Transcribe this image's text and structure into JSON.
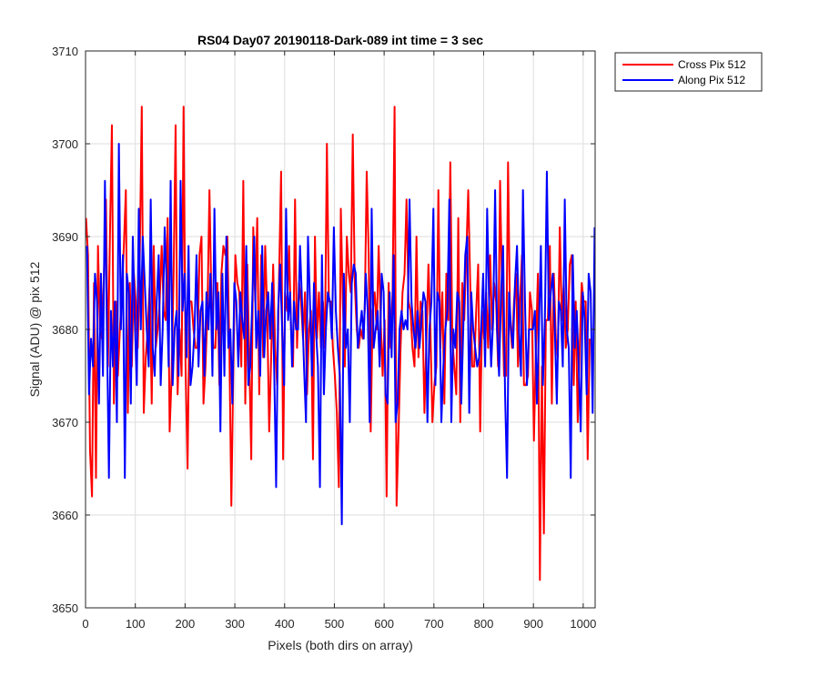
{
  "chart_data": {
    "type": "line",
    "title": "RS04 Day07 20190118-Dark-089 int time = 3 sec",
    "xlabel": "Pixels (both dirs on array)",
    "ylabel": "Signal (ADU) @ pix 512",
    "xlim": [
      0,
      1024
    ],
    "ylim": [
      3650,
      3710
    ],
    "xticks": [
      0,
      100,
      200,
      300,
      400,
      500,
      600,
      700,
      800,
      900,
      1000
    ],
    "yticks": [
      3650,
      3660,
      3670,
      3680,
      3690,
      3700,
      3710
    ],
    "grid": true,
    "legend_position": "outside-top-right",
    "series": [
      {
        "name": "Cross Pix 512",
        "color": "#ff0000",
        "x_start": 1,
        "x_step": 4,
        "values": [
          3692,
          3688,
          3667,
          3662,
          3685,
          3664,
          3689,
          3680,
          3679,
          3686,
          3694,
          3676,
          3690,
          3702,
          3672,
          3683,
          3675,
          3680,
          3684,
          3689,
          3695,
          3671,
          3685,
          3676,
          3686,
          3683,
          3678,
          3688,
          3704,
          3671,
          3677,
          3680,
          3685,
          3672,
          3689,
          3678,
          3680,
          3683,
          3689,
          3682,
          3681,
          3692,
          3669,
          3675,
          3686,
          3702,
          3673,
          3680,
          3675,
          3704,
          3676,
          3665,
          3683,
          3683,
          3680,
          3678,
          3678,
          3688,
          3690,
          3672,
          3676,
          3682,
          3695,
          3683,
          3678,
          3678,
          3685,
          3674,
          3686,
          3689,
          3688,
          3690,
          3678,
          3661,
          3676,
          3688,
          3685,
          3684,
          3676,
          3696,
          3672,
          3687,
          3677,
          3666,
          3691,
          3683,
          3692,
          3673,
          3688,
          3677,
          3689,
          3682,
          3669,
          3677,
          3687,
          3678,
          3674,
          3686,
          3697,
          3666,
          3684,
          3682,
          3689,
          3680,
          3676,
          3694,
          3678,
          3685,
          3683,
          3679,
          3684,
          3673,
          3680,
          3682,
          3666,
          3690,
          3679,
          3684,
          3678,
          3683,
          3678,
          3700,
          3683,
          3683,
          3678,
          3675,
          3671,
          3663,
          3693,
          3683,
          3676,
          3690,
          3686,
          3684,
          3701,
          3685,
          3680,
          3678,
          3680,
          3679,
          3682,
          3697,
          3688,
          3669,
          3682,
          3684,
          3680,
          3689,
          3681,
          3675,
          3681,
          3662,
          3685,
          3678,
          3684,
          3704,
          3661,
          3669,
          3678,
          3684,
          3686,
          3694,
          3683,
          3682,
          3678,
          3676,
          3690,
          3677,
          3683,
          3682,
          3671,
          3679,
          3687,
          3680,
          3670,
          3674,
          3676,
          3695,
          3678,
          3684,
          3672,
          3686,
          3681,
          3698,
          3679,
          3676,
          3673,
          3692,
          3670,
          3685,
          3681,
          3688,
          3695,
          3685,
          3676,
          3676,
          3682,
          3687,
          3669,
          3682,
          3679,
          3684,
          3678,
          3688,
          3680,
          3685,
          3683,
          3676,
          3696,
          3684,
          3675,
          3675,
          3698,
          3681,
          3678,
          3683,
          3686,
          3676,
          3683,
          3688,
          3674,
          3674,
          3675,
          3684,
          3682,
          3668,
          3678,
          3686,
          3653,
          3676,
          3658,
          3681,
          3681,
          3689,
          3672,
          3686,
          3679,
          3677,
          3691,
          3681,
          3685,
          3678,
          3680,
          3687,
          3688,
          3674,
          3683,
          3670,
          3678,
          3685,
          3683,
          3683,
          3666,
          3679
        ]
      },
      {
        "name": "Along Pix 512",
        "color": "#0000ff",
        "x_start": 3,
        "x_step": 4,
        "values": [
          3689,
          3673,
          3679,
          3676,
          3686,
          3683,
          3672,
          3686,
          3675,
          3696,
          3680,
          3664,
          3682,
          3676,
          3683,
          3670,
          3700,
          3680,
          3688,
          3664,
          3686,
          3684,
          3672,
          3690,
          3681,
          3674,
          3693,
          3680,
          3690,
          3685,
          3680,
          3676,
          3694,
          3678,
          3675,
          3683,
          3688,
          3674,
          3680,
          3691,
          3685,
          3676,
          3696,
          3674,
          3680,
          3682,
          3675,
          3696,
          3682,
          3686,
          3677,
          3689,
          3674,
          3676,
          3680,
          3688,
          3676,
          3682,
          3683,
          3675,
          3684,
          3680,
          3686,
          3675,
          3693,
          3680,
          3684,
          3669,
          3686,
          3675,
          3690,
          3678,
          3680,
          3672,
          3685,
          3683,
          3676,
          3684,
          3681,
          3679,
          3689,
          3674,
          3676,
          3683,
          3690,
          3678,
          3682,
          3675,
          3689,
          3677,
          3682,
          3684,
          3679,
          3685,
          3676,
          3663,
          3682,
          3687,
          3680,
          3674,
          3693,
          3681,
          3684,
          3676,
          3683,
          3680,
          3680,
          3689,
          3683,
          3676,
          3670,
          3690,
          3683,
          3675,
          3685,
          3680,
          3676,
          3663,
          3688,
          3673,
          3680,
          3684,
          3683,
          3679,
          3691,
          3682,
          3678,
          3675,
          3659,
          3686,
          3678,
          3680,
          3670,
          3685,
          3687,
          3686,
          3678,
          3680,
          3682,
          3679,
          3686,
          3682,
          3670,
          3693,
          3678,
          3680,
          3682,
          3676,
          3686,
          3684,
          3673,
          3672,
          3684,
          3677,
          3688,
          3670,
          3672,
          3680,
          3682,
          3680,
          3681,
          3680,
          3694,
          3683,
          3680,
          3678,
          3682,
          3678,
          3681,
          3684,
          3683,
          3670,
          3680,
          3683,
          3693,
          3674,
          3684,
          3683,
          3670,
          3676,
          3680,
          3682,
          3694,
          3670,
          3680,
          3678,
          3684,
          3683,
          3672,
          3680,
          3688,
          3690,
          3671,
          3684,
          3680,
          3678,
          3676,
          3677,
          3680,
          3686,
          3676,
          3693,
          3683,
          3676,
          3681,
          3695,
          3680,
          3675,
          3684,
          3689,
          3673,
          3664,
          3684,
          3680,
          3678,
          3685,
          3689,
          3680,
          3675,
          3695,
          3683,
          3674,
          3680,
          3680,
          3680,
          3682,
          3672,
          3680,
          3689,
          3674,
          3681,
          3697,
          3681,
          3684,
          3686,
          3680,
          3672,
          3683,
          3682,
          3676,
          3694,
          3680,
          3678,
          3664,
          3688,
          3678,
          3682,
          3676,
          3669,
          3684,
          3681,
          3673,
          3686,
          3684,
          3671,
          3691
        ]
      }
    ]
  }
}
